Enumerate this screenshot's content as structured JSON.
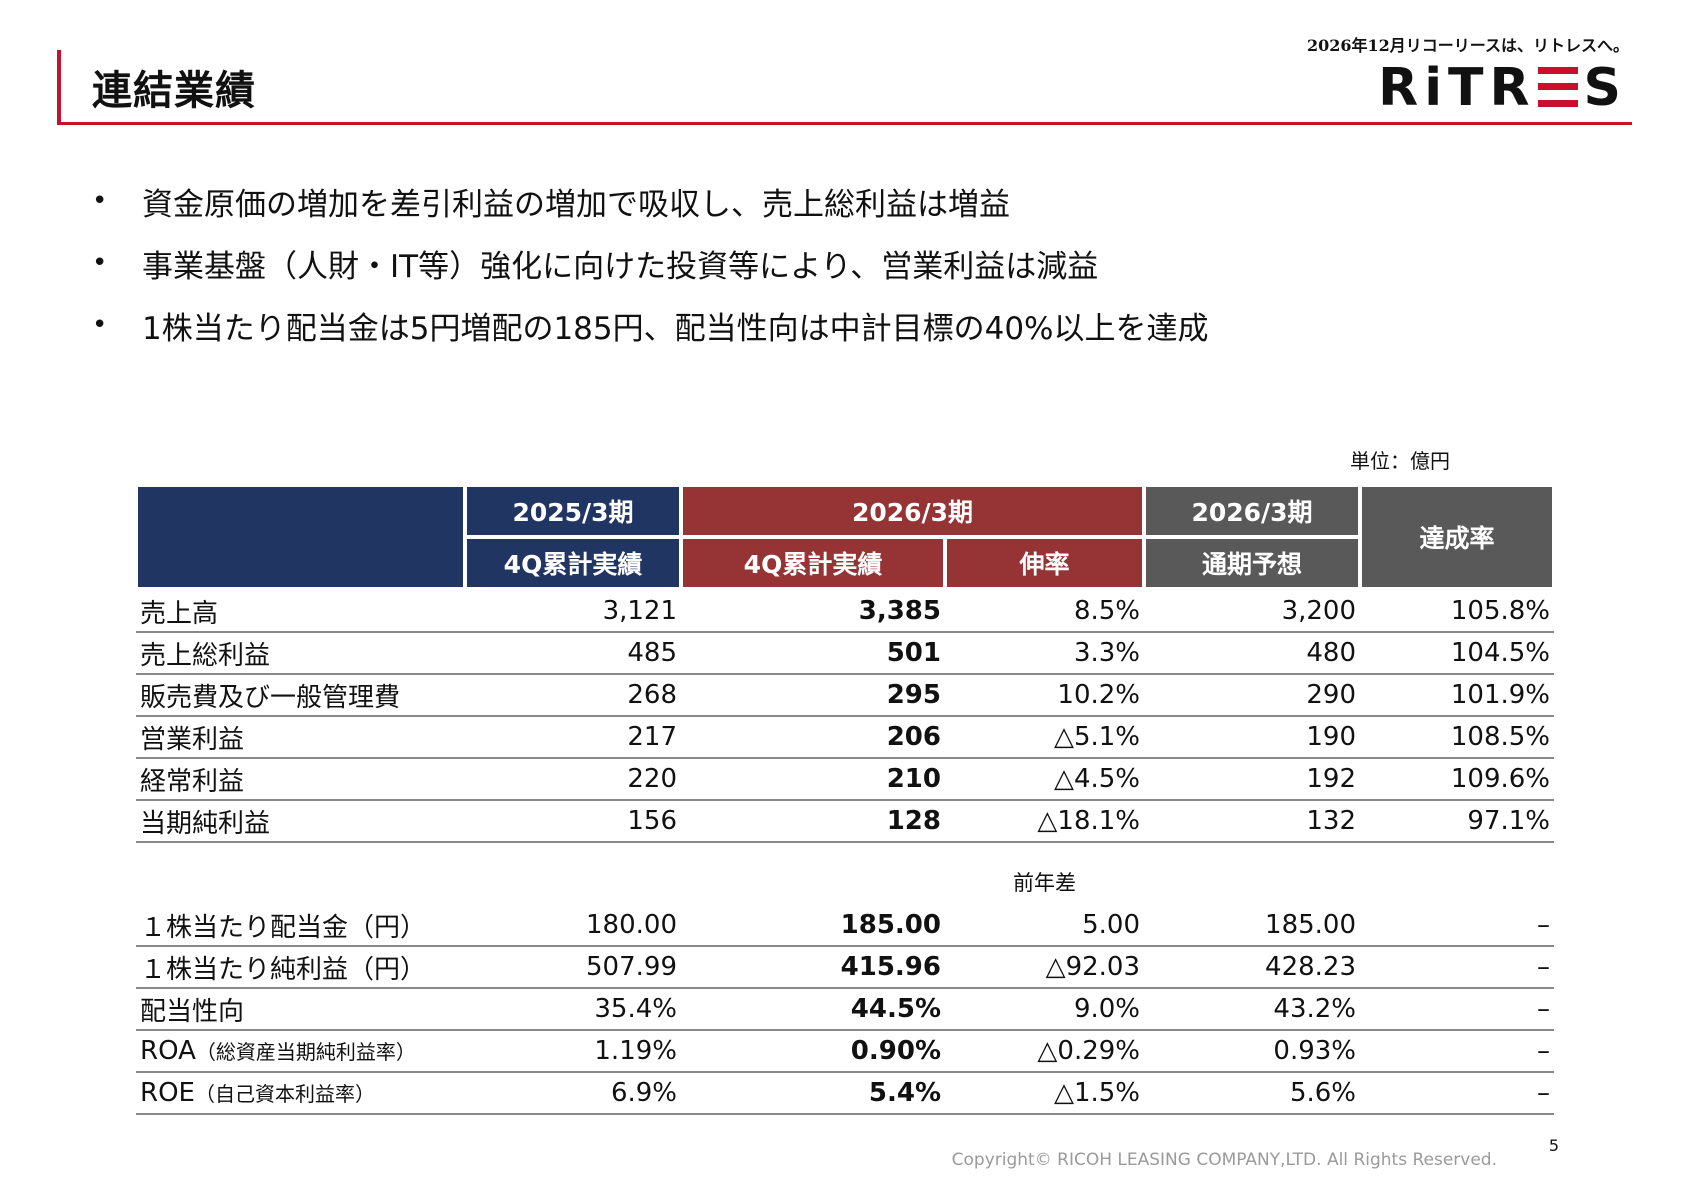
{
  "header": {
    "title": "連結業績",
    "tagline": "2026年12月リコーリースは、リトレスへ。",
    "logo_left": "RiTR",
    "logo_right": "S"
  },
  "bullets": [
    "資金原価の増加を差引利益の増加で吸収し、売上総利益は増益",
    "事業基盤（人財・IT等）強化に向けた投資等により、営業利益は減益",
    "1株当たり配当金は5円増配の185円、配当性向は中計目標の40%以上を達成"
  ],
  "bullet_symbol": "•",
  "unit": "単位：億円",
  "table": {
    "headers": {
      "col_2025_period": "2025/3期",
      "col_2025_sub": "4Q累計実績",
      "col_2026_period": "2026/3期",
      "col_2026_sub": "4Q累計実績",
      "col_growth": "伸率",
      "col_forecast_period": "2026/3期",
      "col_forecast_sub": "通期予想",
      "col_achievement": "達成率"
    },
    "rows": [
      {
        "label": "売上高",
        "v2025": "3,121",
        "v2026": "3,385",
        "growth": "8.5%",
        "forecast": "3,200",
        "achievement": "105.8%"
      },
      {
        "label": "売上総利益",
        "v2025": "485",
        "v2026": "501",
        "growth": "3.3%",
        "forecast": "480",
        "achievement": "104.5%"
      },
      {
        "label": "販売費及び一般管理費",
        "v2025": "268",
        "v2026": "295",
        "growth": "10.2%",
        "forecast": "290",
        "achievement": "101.9%"
      },
      {
        "label": "営業利益",
        "v2025": "217",
        "v2026": "206",
        "growth": "△5.1%",
        "forecast": "190",
        "achievement": "108.5%"
      },
      {
        "label": "経常利益",
        "v2025": "220",
        "v2026": "210",
        "growth": "△4.5%",
        "forecast": "192",
        "achievement": "109.6%"
      },
      {
        "label": "当期純利益",
        "v2025": "156",
        "v2026": "128",
        "growth": "△18.1%",
        "forecast": "132",
        "achievement": "97.1%"
      }
    ],
    "diff_label": "前年差",
    "rows2": [
      {
        "label": "１株当たり配当金（円）",
        "label_small": "",
        "v2025": "180.00",
        "v2026": "185.00",
        "diff": "5.00",
        "forecast": "185.00",
        "achievement": "–"
      },
      {
        "label": "１株当たり純利益（円）",
        "label_small": "",
        "v2025": "507.99",
        "v2026": "415.96",
        "diff": "△92.03",
        "forecast": "428.23",
        "achievement": "–"
      },
      {
        "label": "配当性向",
        "label_small": "",
        "v2025": "35.4%",
        "v2026": "44.5%",
        "diff": "9.0%",
        "forecast": "43.2%",
        "achievement": "–"
      },
      {
        "label": "ROA",
        "label_small": "（総資産当期純利益率）",
        "v2025": "1.19%",
        "v2026": "0.90%",
        "diff": "△0.29%",
        "forecast": "0.93%",
        "achievement": "–"
      },
      {
        "label": "ROE",
        "label_small": "（自己資本利益率）",
        "v2025": "6.9%",
        "v2026": "5.4%",
        "diff": "△1.5%",
        "forecast": "5.6%",
        "achievement": "–"
      }
    ]
  },
  "footer": {
    "copyright": "Copyright© RICOH LEASING COMPANY,LTD.  All Rights Reserved.",
    "page_number": "5"
  },
  "colors": {
    "accent_red": "#c8102e",
    "header_navy": "#213563",
    "header_red": "#963334",
    "header_gray": "#595959"
  }
}
